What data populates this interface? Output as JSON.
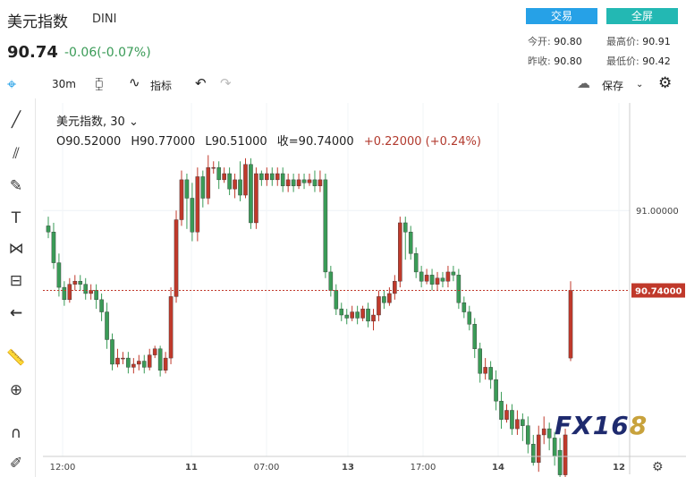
{
  "header": {
    "name": "美元指数",
    "code": "DINI",
    "last": "90.74",
    "change": "-0.06(-0.07%)",
    "trade_button": "交易",
    "fullscreen_button": "全屏",
    "open_label": "今开:",
    "open_value": "90.80",
    "high_label": "最高价:",
    "high_value": "90.91",
    "prev_label": "昨收:",
    "prev_value": "90.80",
    "low_label": "最低价:",
    "low_value": "90.42"
  },
  "toolbar": {
    "interval": "30m",
    "indicators": "指标",
    "save": "保存"
  },
  "legend": {
    "title": "美元指数, 30",
    "open": "O90.52000",
    "high": "H90.77000",
    "low": "L90.51000",
    "close": "收=90.74000",
    "change": "+0.22000 (+0.24%)"
  },
  "logo": {
    "text": "FX16",
    "accent": "8"
  },
  "colors": {
    "up": "#c0392b",
    "down": "#3a9b57",
    "accent": "#26a1e7",
    "price_line": "#c0392b"
  },
  "chart_data": {
    "type": "candlestick",
    "title": "美元指数, 30",
    "x_ticks": [
      "12:00",
      "11",
      "07:00",
      "13",
      "17:00",
      "14",
      "12"
    ],
    "y_ticks": [
      "91.00000"
    ],
    "last_price_label": "90.74000",
    "ylim": [
      90.2,
      91.35
    ],
    "grid": true,
    "candles": [
      [
        90.95,
        90.93,
        90.98,
        90.91
      ],
      [
        90.93,
        90.83,
        90.96,
        90.81
      ],
      [
        90.83,
        90.75,
        90.86,
        90.72
      ],
      [
        90.75,
        90.71,
        90.77,
        90.69
      ],
      [
        90.71,
        90.76,
        90.78,
        90.7
      ],
      [
        90.76,
        90.77,
        90.79,
        90.74
      ],
      [
        90.77,
        90.76,
        90.79,
        90.74
      ],
      [
        90.76,
        90.73,
        90.78,
        90.71
      ],
      [
        90.73,
        90.74,
        90.76,
        90.71
      ],
      [
        90.74,
        90.71,
        90.76,
        90.68
      ],
      [
        90.71,
        90.67,
        90.73,
        90.64
      ],
      [
        90.67,
        90.58,
        90.7,
        90.55
      ],
      [
        90.58,
        90.5,
        90.6,
        90.48
      ],
      [
        90.5,
        90.52,
        90.55,
        90.49
      ],
      [
        90.52,
        90.52,
        90.54,
        90.5
      ],
      [
        90.52,
        90.49,
        90.54,
        90.47
      ],
      [
        90.49,
        90.5,
        90.52,
        90.47
      ],
      [
        90.5,
        90.51,
        90.53,
        90.48
      ],
      [
        90.51,
        90.49,
        90.53,
        90.47
      ],
      [
        90.49,
        90.53,
        90.55,
        90.48
      ],
      [
        90.53,
        90.55,
        90.56,
        90.52
      ],
      [
        90.55,
        90.48,
        90.56,
        90.46
      ],
      [
        90.48,
        90.52,
        90.54,
        90.47
      ],
      [
        90.52,
        90.72,
        90.75,
        90.5
      ],
      [
        90.72,
        90.97,
        91.0,
        90.7
      ],
      [
        90.97,
        91.1,
        91.13,
        90.95
      ],
      [
        91.1,
        91.04,
        91.12,
        90.94
      ],
      [
        91.04,
        90.93,
        91.09,
        90.9
      ],
      [
        90.93,
        91.11,
        91.14,
        90.9
      ],
      [
        91.11,
        91.04,
        91.13,
        91.01
      ],
      [
        91.04,
        91.14,
        91.18,
        91.02
      ],
      [
        91.14,
        91.14,
        91.16,
        91.12
      ],
      [
        91.14,
        91.1,
        91.16,
        91.07
      ],
      [
        91.1,
        91.12,
        91.14,
        91.09
      ],
      [
        91.12,
        91.07,
        91.14,
        91.05
      ],
      [
        91.07,
        91.1,
        91.12,
        91.04
      ],
      [
        91.1,
        91.05,
        91.16,
        91.03
      ],
      [
        91.05,
        91.15,
        91.17,
        91.04
      ],
      [
        91.15,
        90.96,
        91.17,
        90.94
      ],
      [
        90.96,
        91.12,
        91.14,
        90.94
      ],
      [
        91.12,
        91.1,
        91.13,
        91.08
      ],
      [
        91.1,
        91.12,
        91.14,
        91.08
      ],
      [
        91.12,
        91.1,
        91.14,
        91.08
      ],
      [
        91.1,
        91.12,
        91.14,
        91.08
      ],
      [
        91.12,
        91.08,
        91.14,
        91.06
      ],
      [
        91.08,
        91.1,
        91.12,
        91.06
      ],
      [
        91.1,
        91.08,
        91.12,
        91.06
      ],
      [
        91.08,
        91.1,
        91.12,
        91.07
      ],
      [
        91.1,
        91.09,
        91.12,
        91.07
      ],
      [
        91.09,
        91.1,
        91.12,
        91.08
      ],
      [
        91.1,
        91.08,
        91.13,
        91.06
      ],
      [
        91.08,
        91.1,
        91.13,
        91.06
      ],
      [
        91.1,
        90.8,
        91.12,
        90.78
      ],
      [
        90.8,
        90.74,
        90.82,
        90.72
      ],
      [
        90.74,
        90.68,
        90.76,
        90.66
      ],
      [
        90.68,
        90.66,
        90.7,
        90.64
      ],
      [
        90.66,
        90.65,
        90.68,
        90.63
      ],
      [
        90.65,
        90.67,
        90.69,
        90.64
      ],
      [
        90.67,
        90.65,
        90.69,
        90.63
      ],
      [
        90.65,
        90.68,
        90.69,
        90.64
      ],
      [
        90.68,
        90.64,
        90.7,
        90.62
      ],
      [
        90.64,
        90.66,
        90.68,
        90.61
      ],
      [
        90.66,
        90.72,
        90.74,
        90.64
      ],
      [
        90.72,
        90.7,
        90.74,
        90.68
      ],
      [
        90.7,
        90.73,
        90.75,
        90.69
      ],
      [
        90.73,
        90.77,
        90.79,
        90.71
      ],
      [
        90.77,
        90.96,
        90.98,
        90.75
      ],
      [
        90.96,
        90.93,
        90.98,
        90.84
      ],
      [
        90.93,
        90.86,
        90.95,
        90.84
      ],
      [
        90.86,
        90.8,
        90.88,
        90.78
      ],
      [
        90.8,
        90.77,
        90.82,
        90.75
      ],
      [
        90.77,
        90.79,
        90.81,
        90.76
      ],
      [
        90.79,
        90.76,
        90.81,
        90.74
      ],
      [
        90.76,
        90.78,
        90.8,
        90.74
      ],
      [
        90.78,
        90.77,
        90.8,
        90.75
      ],
      [
        90.77,
        90.8,
        90.82,
        90.75
      ],
      [
        90.8,
        90.79,
        90.82,
        90.77
      ],
      [
        90.79,
        90.7,
        90.81,
        90.68
      ],
      [
        90.7,
        90.67,
        90.72,
        90.65
      ],
      [
        90.67,
        90.63,
        90.69,
        90.61
      ],
      [
        90.63,
        90.55,
        90.65,
        90.52
      ],
      [
        90.55,
        90.47,
        90.57,
        90.44
      ],
      [
        90.47,
        90.49,
        90.52,
        90.45
      ],
      [
        90.49,
        90.45,
        90.51,
        90.42
      ],
      [
        90.45,
        90.38,
        90.48,
        90.35
      ],
      [
        90.38,
        90.32,
        90.41,
        90.29
      ],
      [
        90.32,
        90.35,
        90.37,
        90.31
      ],
      [
        90.35,
        90.29,
        90.37,
        90.27
      ],
      [
        90.29,
        90.32,
        90.35,
        90.27
      ],
      [
        90.32,
        90.3,
        90.34,
        90.25
      ],
      [
        90.3,
        90.24,
        90.33,
        90.21
      ],
      [
        90.24,
        90.18,
        90.27,
        90.17
      ],
      [
        90.18,
        90.27,
        90.3,
        90.15
      ],
      [
        90.27,
        90.29,
        90.33,
        90.24
      ],
      [
        90.29,
        90.26,
        90.31,
        90.22
      ],
      [
        90.26,
        90.2,
        90.28,
        90.17
      ],
      [
        90.22,
        90.14,
        90.26,
        90.11
      ],
      [
        90.14,
        90.27,
        90.29,
        90.12
      ],
      [
        90.52,
        90.74,
        90.77,
        90.51
      ]
    ]
  }
}
